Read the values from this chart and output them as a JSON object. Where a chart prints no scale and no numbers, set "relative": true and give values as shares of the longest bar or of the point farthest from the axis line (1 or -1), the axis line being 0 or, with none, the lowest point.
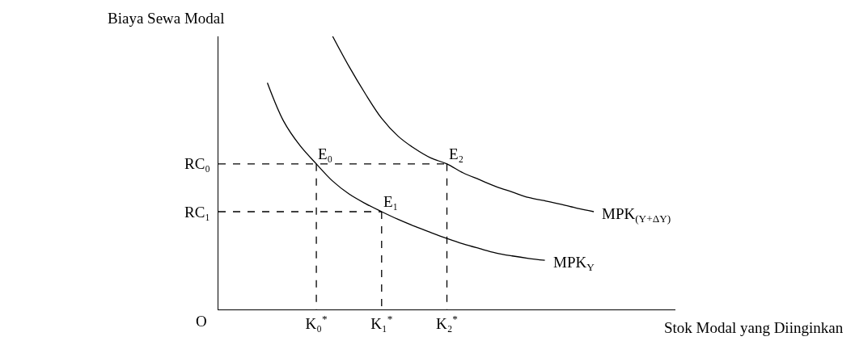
{
  "chart_data": {
    "type": "line",
    "relative": true,
    "xlabel": "Stok Modal yang Diinginkan",
    "ylabel": "Biaya Sewa Modal",
    "categories": [
      null,
      null,
      null,
      null,
      null,
      null,
      "K₀$^{*}$",
      null,
      null,
      null,
      "K₁$^{*}$",
      null,
      null,
      null,
      "K₂$^{*}$",
      null,
      null,
      null,
      null,
      null,
      null,
      null,
      null,
      null,
      null,
      null,
      null,
      null,
      null
    ],
    "legend": false,
    "marker": "none",
    "series": [
      {
        "name": "MPK$_{Y}$",
        "color": "#000000",
        "line_style": "solid",
        "values": [
          null,
          null,
          null,
          0.83,
          0.689,
          0.6,
          0.533,
          0.47,
          0.423,
          0.388,
          0.358,
          0.33,
          0.305,
          0.282,
          0.26,
          0.24,
          0.223,
          0.207,
          0.196,
          0.187,
          0.18,
          null,
          null,
          null,
          null,
          null,
          null,
          null,
          null
        ]
      },
      {
        "name": "MPK$_{(Y+ΔY)}$",
        "color": "#000000",
        "line_style": "solid",
        "values": [
          null,
          null,
          null,
          null,
          null,
          null,
          null,
          1,
          0.89,
          0.79,
          0.7,
          0.635,
          0.59,
          0.555,
          0.533,
          0.5,
          0.475,
          0.45,
          0.43,
          0.41,
          0.398,
          0.385,
          0.37,
          0.358,
          null,
          null,
          null,
          null,
          null
        ]
      },
      {
        "name": "RC₀",
        "color": "#000000",
        "line_style": "dashed",
        "values": [
          0.533,
          0.533,
          0.533,
          0.533,
          0.533,
          0.533,
          0.533,
          0.533,
          0.533,
          0.533,
          0.533,
          0.533,
          0.533,
          0.533,
          0.533,
          null,
          null,
          null,
          null,
          null,
          null,
          null,
          null,
          null,
          null,
          null,
          null,
          null,
          null
        ]
      },
      {
        "name": "RC₁",
        "color": "#000000",
        "line_style": "dashed",
        "values": [
          0.358,
          0.358,
          0.358,
          0.358,
          0.358,
          0.358,
          0.358,
          0.358,
          0.358,
          0.358,
          0.358,
          null,
          null,
          null,
          null,
          null,
          null,
          null,
          null,
          null,
          null,
          null,
          null,
          null,
          null,
          null,
          null,
          null,
          null
        ]
      },
      {
        "color": "#000000",
        "line_style": "dashed",
        "x": [
          "K₀$^{*}$",
          "K₀$^{*}$"
        ],
        "values": [
          0.533,
          0
        ]
      },
      {
        "color": "#000000",
        "line_style": "dashed",
        "x": [
          "K₁$^{*}$",
          "K₁$^{*}$"
        ],
        "values": [
          0.358,
          0
        ]
      },
      {
        "color": "#000000",
        "line_style": "dashed",
        "x": [
          "K₂$^{*}$",
          "K₂$^{*}$"
        ],
        "values": [
          0.533,
          0
        ]
      }
    ],
    "annotations": [
      "O",
      {
        "text": "E₀",
        "x": "K₀$^{*}$",
        "y": 0.533
      },
      {
        "text": "E₁",
        "x": "K₁$^{*}$",
        "y": 0.358
      },
      {
        "text": "E₂",
        "x": "K₂$^{*}$",
        "y": 0.533
      }
    ]
  }
}
